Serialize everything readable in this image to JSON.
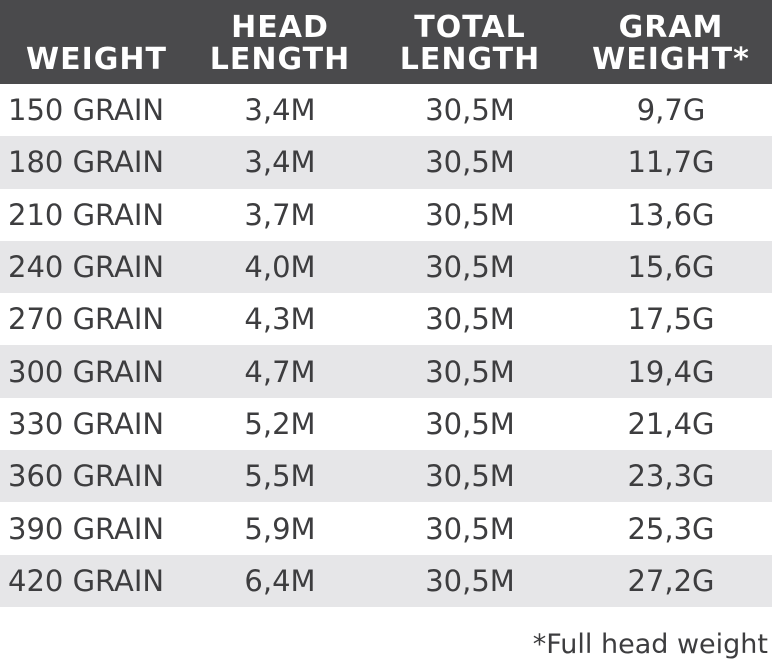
{
  "table": {
    "headers": [
      [
        "WEIGHT"
      ],
      [
        "HEAD",
        "LENGTH"
      ],
      [
        "TOTAL",
        "LENGTH"
      ],
      [
        "GRAM",
        "WEIGHT*"
      ]
    ],
    "rows": [
      [
        "150 GRAIN",
        "3,4M",
        "30,5M",
        "9,7G"
      ],
      [
        "180 GRAIN",
        "3,4M",
        "30,5M",
        "11,7G"
      ],
      [
        "210 GRAIN",
        "3,7M",
        "30,5M",
        "13,6G"
      ],
      [
        "240 GRAIN",
        "4,0M",
        "30,5M",
        "15,6G"
      ],
      [
        "270 GRAIN",
        "4,3M",
        "30,5M",
        "17,5G"
      ],
      [
        "300 GRAIN",
        "4,7M",
        "30,5M",
        "19,4G"
      ],
      [
        "330 GRAIN",
        "5,2M",
        "30,5M",
        "21,4G"
      ],
      [
        "360 GRAIN",
        "5,5M",
        "30,5M",
        "23,3G"
      ],
      [
        "390 GRAIN",
        "5,9M",
        "30,5M",
        "25,3G"
      ],
      [
        "420 GRAIN",
        "6,4M",
        "30,5M",
        "27,2G"
      ]
    ]
  },
  "footnote": "*Full head weight",
  "colors": {
    "header_background": "#4a4a4c",
    "header_text": "#ffffff",
    "row_stripe": "#e6e6e8",
    "body_text": "#3d3d3f"
  }
}
